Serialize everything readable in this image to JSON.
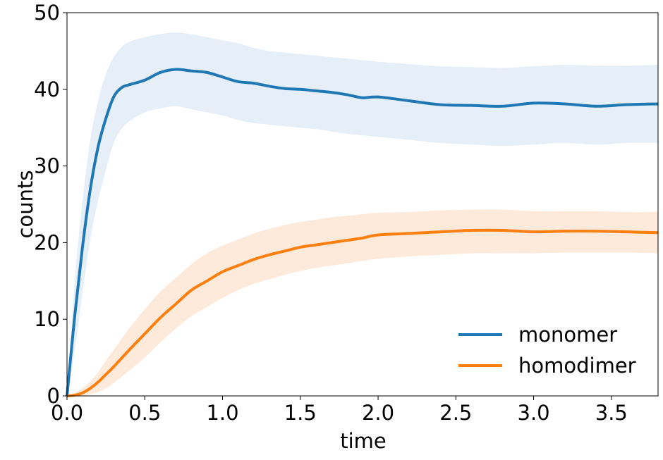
{
  "chart_data": {
    "type": "line",
    "xlabel": "time",
    "ylabel": "counts",
    "xlim": [
      0,
      3.8
    ],
    "ylim": [
      0,
      50
    ],
    "xticks": [
      "0.0",
      "0.5",
      "1.0",
      "1.5",
      "2.0",
      "2.5",
      "3.0",
      "3.5"
    ],
    "yticks": [
      "0",
      "10",
      "20",
      "30",
      "40",
      "50"
    ],
    "grid": false,
    "legend_position": "bottom-right",
    "series": [
      {
        "name": "monomer",
        "color": "#1f77b4",
        "band_color": "#e6eff8",
        "x": [
          0,
          0.05,
          0.1,
          0.15,
          0.2,
          0.25,
          0.3,
          0.35,
          0.4,
          0.5,
          0.6,
          0.7,
          0.8,
          0.9,
          1.0,
          1.1,
          1.2,
          1.3,
          1.4,
          1.5,
          1.6,
          1.7,
          1.8,
          1.9,
          2.0,
          2.2,
          2.4,
          2.6,
          2.8,
          3.0,
          3.2,
          3.4,
          3.6,
          3.8
        ],
        "y": [
          0,
          10.5,
          19.5,
          27,
          32.5,
          36.2,
          39.0,
          40.2,
          40.6,
          41.2,
          42.2,
          42.6,
          42.4,
          42.2,
          41.6,
          41.0,
          40.8,
          40.4,
          40.1,
          40.0,
          39.8,
          39.6,
          39.3,
          38.9,
          39.0,
          38.5,
          38.0,
          37.9,
          37.8,
          38.2,
          38.1,
          37.8,
          38.0,
          38.1
        ],
        "lower": [
          0,
          6.0,
          13.5,
          20.5,
          25.5,
          29.5,
          33.0,
          34.8,
          35.8,
          37.0,
          37.5,
          37.8,
          37.4,
          37.0,
          36.6,
          36.0,
          35.6,
          35.4,
          35.2,
          35.0,
          34.8,
          34.5,
          34.2,
          34.0,
          33.8,
          33.4,
          33.0,
          32.8,
          32.6,
          32.8,
          33.0,
          32.8,
          33.0,
          33.0
        ],
        "upper": [
          0,
          15.0,
          25.5,
          33.5,
          38.5,
          42.0,
          44.2,
          45.5,
          46.2,
          46.8,
          47.2,
          47.4,
          47.2,
          46.8,
          46.4,
          46.0,
          45.4,
          45.0,
          44.8,
          44.6,
          44.4,
          44.2,
          44.0,
          43.8,
          43.6,
          43.3,
          43.0,
          42.9,
          42.8,
          43.0,
          43.2,
          43.1,
          43.1,
          43.2
        ]
      },
      {
        "name": "homodimer",
        "color": "#ff7f0e",
        "band_color": "#fdeadb",
        "x": [
          0,
          0.05,
          0.1,
          0.15,
          0.2,
          0.25,
          0.3,
          0.4,
          0.5,
          0.6,
          0.7,
          0.8,
          0.9,
          1.0,
          1.1,
          1.2,
          1.3,
          1.4,
          1.5,
          1.6,
          1.7,
          1.8,
          1.9,
          2.0,
          2.2,
          2.4,
          2.6,
          2.8,
          3.0,
          3.2,
          3.4,
          3.6,
          3.8
        ],
        "y": [
          0,
          0.1,
          0.4,
          1.0,
          1.8,
          2.8,
          3.8,
          6.0,
          8.1,
          10.2,
          12.0,
          13.8,
          15.0,
          16.2,
          17.0,
          17.8,
          18.4,
          18.9,
          19.4,
          19.7,
          20.0,
          20.3,
          20.6,
          21.0,
          21.2,
          21.4,
          21.6,
          21.6,
          21.4,
          21.5,
          21.5,
          21.4,
          21.3
        ],
        "lower": [
          0,
          0,
          0,
          0.2,
          0.5,
          1.0,
          1.7,
          3.3,
          5.0,
          7.0,
          8.8,
          10.4,
          11.6,
          12.8,
          13.8,
          14.6,
          15.2,
          15.8,
          16.3,
          16.7,
          17.0,
          17.3,
          17.6,
          17.9,
          18.2,
          18.4,
          18.6,
          18.6,
          18.6,
          18.7,
          18.7,
          18.7,
          18.6
        ],
        "upper": [
          0,
          0.4,
          1.0,
          1.9,
          3.1,
          4.6,
          6.0,
          8.8,
          11.3,
          13.6,
          15.4,
          17.2,
          18.6,
          19.6,
          20.4,
          21.2,
          21.8,
          22.3,
          22.7,
          23.0,
          23.3,
          23.5,
          23.7,
          23.9,
          24.0,
          24.2,
          24.3,
          24.3,
          24.1,
          24.1,
          24.1,
          24.0,
          24.0
        ]
      }
    ]
  }
}
